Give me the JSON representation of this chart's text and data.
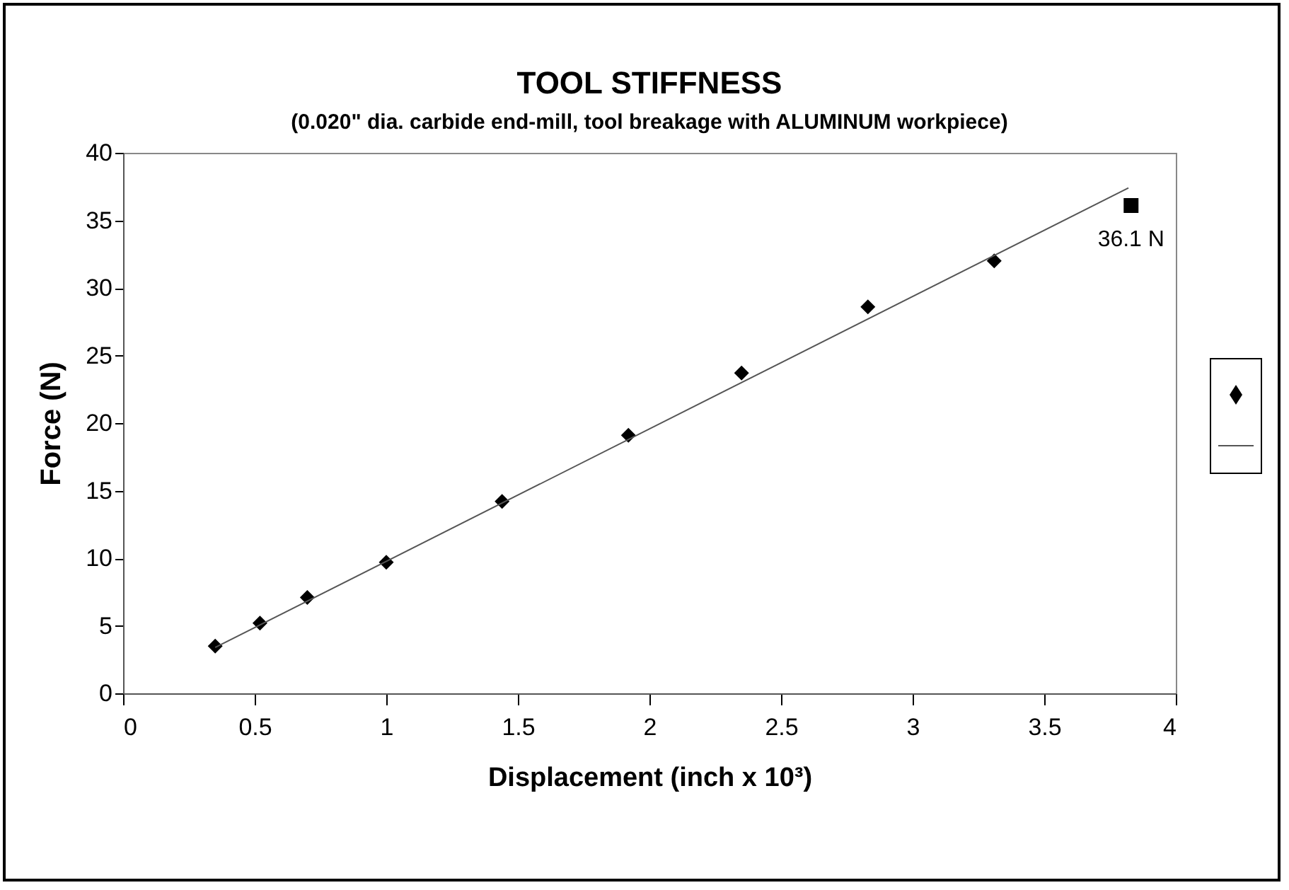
{
  "chart_data": {
    "type": "scatter",
    "title": "TOOL STIFFNESS",
    "subtitle": "(0.020\" dia. carbide end-mill, tool breakage with ALUMINUM workpiece)",
    "xlabel": "Displacement (inch x 10³)",
    "ylabel": "Force (N)",
    "series": [
      {
        "marker": "diamond",
        "color": "#000000",
        "x": [
          0.35,
          0.52,
          0.7,
          1.0,
          1.44,
          1.92,
          2.35,
          2.83,
          3.31
        ],
        "values": [
          3.5,
          5.2,
          7.1,
          9.7,
          14.2,
          19.1,
          23.7,
          28.6,
          32.0
        ]
      },
      {
        "marker": "square",
        "color": "#000000",
        "x": [
          3.83
        ],
        "values": [
          36.1
        ]
      },
      {
        "type": "line",
        "color": "#555555",
        "x": [
          0.35,
          3.82
        ],
        "values": [
          3.4,
          37.4
        ]
      }
    ],
    "annotations": [
      {
        "text": "36.1 N",
        "x": 3.83,
        "y": 36.1
      }
    ],
    "xlim": [
      0,
      4
    ],
    "xticks": [
      0,
      0.5,
      1,
      1.5,
      2,
      2.5,
      3,
      3.5,
      4
    ],
    "ylim": [
      0,
      40
    ],
    "yticks": [
      0,
      5,
      10,
      15,
      20,
      25,
      30,
      35,
      40
    ]
  }
}
